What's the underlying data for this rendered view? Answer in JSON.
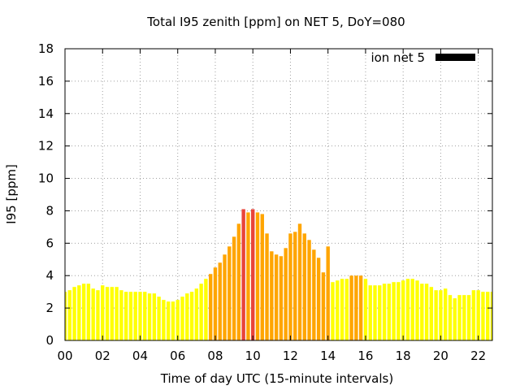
{
  "chart_data": {
    "type": "bar",
    "title": "Total I95 zenith [ppm] on NET 5, DoY=080",
    "xlabel": "Time of day UTC (15-minute intervals)",
    "ylabel": "I95 [ppm]",
    "xlim": [
      0,
      22.75
    ],
    "ylim": [
      0,
      18
    ],
    "xticks": [
      0,
      2,
      4,
      6,
      8,
      10,
      12,
      14,
      16,
      18,
      20,
      22
    ],
    "xtick_labels": [
      "00",
      "02",
      "04",
      "06",
      "08",
      "10",
      "12",
      "14",
      "16",
      "18",
      "20",
      "22"
    ],
    "yticks": [
      0,
      2,
      4,
      6,
      8,
      10,
      12,
      14,
      16,
      18
    ],
    "ytick_labels": [
      "0",
      "2",
      "4",
      "6",
      "8",
      "10",
      "12",
      "14",
      "16",
      "18"
    ],
    "grid": true,
    "legend": {
      "position": "top-right",
      "label": "ion net 5",
      "color": "#000000"
    },
    "bar_width_hours": 0.19,
    "color_scale": [
      {
        "min": 0,
        "max": 4,
        "color": "#ffff00"
      },
      {
        "min": 4,
        "max": 8,
        "color": "#ffa500"
      },
      {
        "min": 8,
        "max": 18,
        "color": "#e8443a"
      }
    ],
    "x": [
      0.0,
      0.25,
      0.5,
      0.75,
      1.0,
      1.25,
      1.5,
      1.75,
      2.0,
      2.25,
      2.5,
      2.75,
      3.0,
      3.25,
      3.5,
      3.75,
      4.0,
      4.25,
      4.5,
      4.75,
      5.0,
      5.25,
      5.5,
      5.75,
      6.0,
      6.25,
      6.5,
      6.75,
      7.0,
      7.25,
      7.5,
      7.75,
      8.0,
      8.25,
      8.5,
      8.75,
      9.0,
      9.25,
      9.5,
      9.75,
      10.0,
      10.25,
      10.5,
      10.75,
      11.0,
      11.25,
      11.5,
      11.75,
      12.0,
      12.25,
      12.5,
      12.75,
      13.0,
      13.25,
      13.5,
      13.75,
      14.0,
      14.25,
      14.5,
      14.75,
      15.0,
      15.25,
      15.5,
      15.75,
      16.0,
      16.25,
      16.5,
      16.75,
      17.0,
      17.25,
      17.5,
      17.75,
      18.0,
      18.25,
      18.5,
      18.75,
      19.0,
      19.25,
      19.5,
      19.75,
      20.0,
      20.25,
      20.5,
      20.75,
      21.0,
      21.25,
      21.5,
      21.75,
      22.0,
      22.25,
      22.5,
      22.75
    ],
    "values": [
      3.0,
      3.1,
      3.3,
      3.4,
      3.5,
      3.5,
      3.2,
      3.1,
      3.4,
      3.3,
      3.3,
      3.3,
      3.1,
      3.0,
      3.0,
      3.0,
      3.0,
      3.0,
      2.9,
      2.9,
      2.7,
      2.5,
      2.4,
      2.4,
      2.5,
      2.7,
      2.9,
      3.0,
      3.2,
      3.5,
      3.8,
      4.1,
      4.5,
      4.8,
      5.3,
      5.8,
      6.4,
      7.2,
      8.1,
      7.9,
      8.1,
      7.9,
      7.8,
      6.6,
      5.5,
      5.3,
      5.2,
      5.7,
      6.6,
      6.7,
      7.2,
      6.6,
      6.2,
      5.6,
      5.1,
      4.2,
      5.8,
      3.6,
      3.7,
      3.8,
      3.8,
      4.0,
      4.0,
      4.0,
      3.8,
      3.4,
      3.4,
      3.4,
      3.5,
      3.5,
      3.6,
      3.6,
      3.7,
      3.8,
      3.8,
      3.7,
      3.5,
      3.5,
      3.3,
      3.1,
      3.1,
      3.2,
      2.8,
      2.6,
      2.8,
      2.8,
      2.8,
      3.1,
      3.1,
      3.0,
      3.0,
      3.0
    ]
  }
}
